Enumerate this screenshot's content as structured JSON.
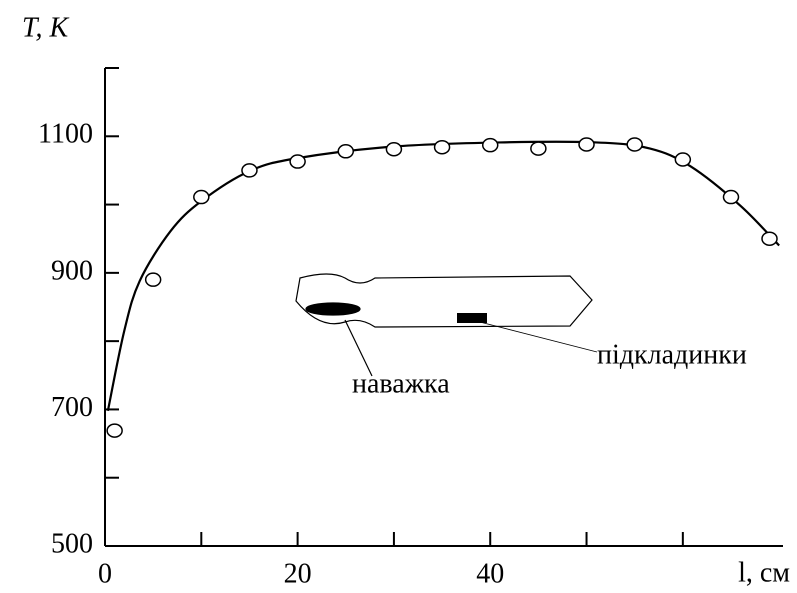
{
  "chart_data": {
    "type": "line",
    "x_label": "l, см",
    "y_label": "T, К",
    "xlim": [
      0,
      70.4
    ],
    "ylim": [
      500,
      1200
    ],
    "xticks": [
      0,
      20,
      40
    ],
    "xminor_ticks": [
      10,
      30,
      50,
      60
    ],
    "yticks": [
      500,
      700,
      900,
      1100
    ],
    "yminor_ticks": [
      600,
      800,
      1000,
      1200
    ],
    "series": [
      {
        "color": "#000000",
        "marker": "circle",
        "x": [
          1,
          5,
          10,
          15,
          20,
          25,
          30,
          35,
          40,
          45,
          50,
          55,
          60,
          65,
          69
        ],
        "values": [
          669,
          890,
          1011,
          1050,
          1063,
          1078,
          1081,
          1084,
          1087,
          1082,
          1088,
          1088,
          1066,
          1011,
          950
        ]
      },
      {
        "color": "#000000",
        "marker": "none",
        "x": [
          0.3,
          2,
          3.6,
          6.8,
          10,
          15,
          20,
          30,
          41,
          51,
          56.6,
          60.8,
          66,
          70
        ],
        "values": [
          698,
          815,
          888,
          961,
          1005,
          1049,
          1068,
          1085,
          1091,
          1091,
          1082,
          1056,
          998,
          940
        ]
      }
    ],
    "annotations": [
      "наважка",
      "підкладинки"
    ]
  }
}
